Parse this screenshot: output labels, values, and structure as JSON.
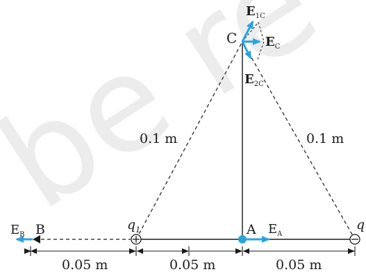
{
  "watermark": "be re",
  "colors": {
    "line": "#1a1a1a",
    "vector": "#29a3e0",
    "watermark": "#ececec"
  },
  "points": {
    "c": "C",
    "a": "A",
    "b": "B"
  },
  "charges": {
    "q1": {
      "symbol": "q",
      "subscript": "1",
      "sign": "+"
    },
    "q2": {
      "symbol": "q",
      "subscript": "",
      "sign": "−"
    }
  },
  "vectors": {
    "e1c": {
      "base": "E",
      "sub": "1C"
    },
    "ec": {
      "base": "E",
      "sub": "C"
    },
    "e2c": {
      "base": "E",
      "sub": "2C"
    },
    "ea": {
      "base": "E",
      "sub": "A"
    },
    "eb": {
      "base": "E",
      "sub": "B"
    }
  },
  "distances": {
    "left_side": "0.1 m",
    "right_side": "0.1 m",
    "bottom": [
      "0.05 m",
      "0.05 m",
      "0.05 m"
    ]
  }
}
